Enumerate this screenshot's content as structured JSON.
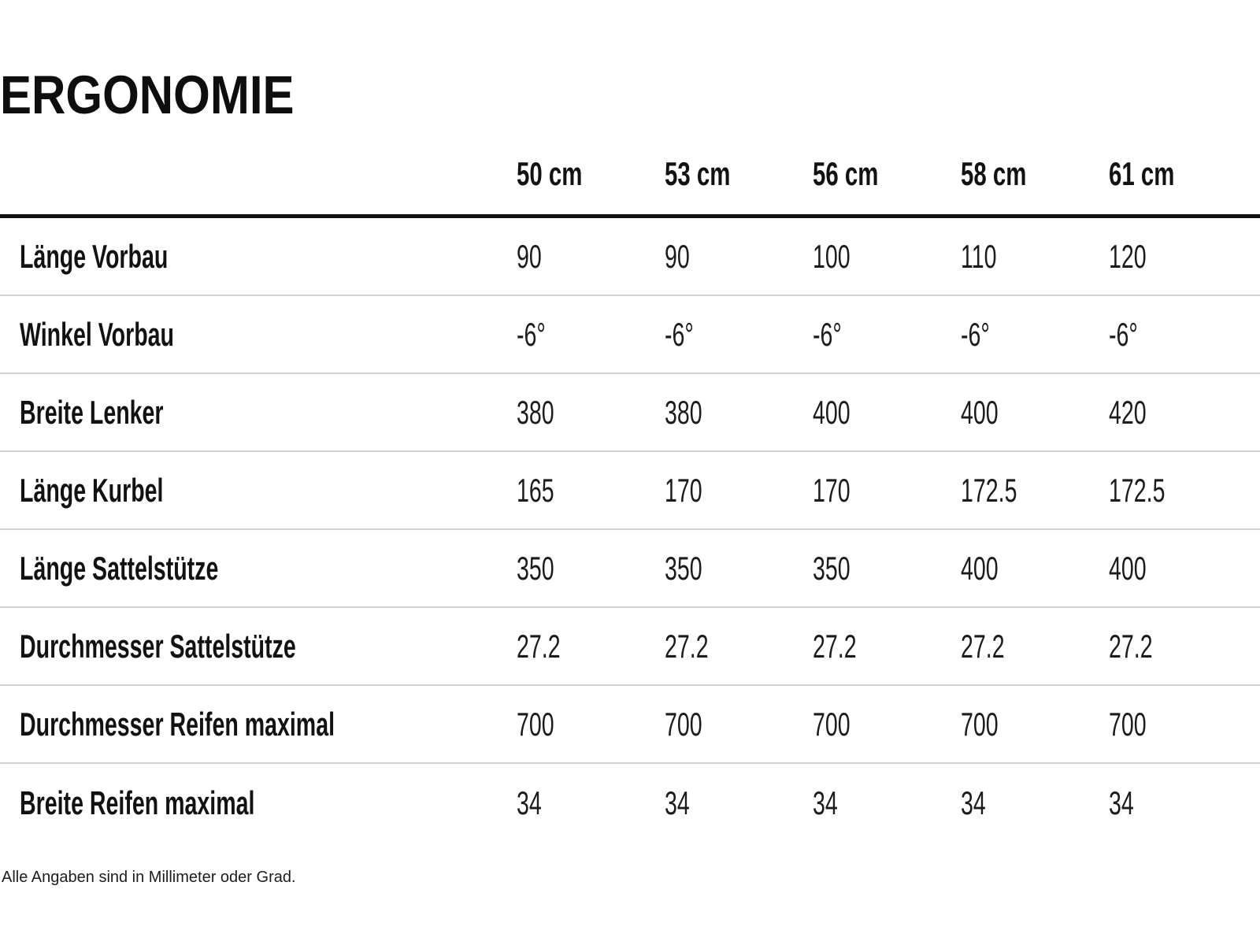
{
  "page": {
    "title": "ERGONOMIE",
    "footnote": "Alle Angaben sind in Millimeter oder Grad."
  },
  "table": {
    "columns": [
      "50 cm",
      "53 cm",
      "56 cm",
      "58 cm",
      "61 cm"
    ],
    "rows": [
      {
        "label": "Länge Vorbau",
        "values": [
          "90",
          "90",
          "100",
          "110",
          "120"
        ]
      },
      {
        "label": "Winkel Vorbau",
        "values": [
          "-6°",
          "-6°",
          "-6°",
          "-6°",
          "-6°"
        ]
      },
      {
        "label": "Breite Lenker",
        "values": [
          "380",
          "380",
          "400",
          "400",
          "420"
        ]
      },
      {
        "label": "Länge Kurbel",
        "values": [
          "165",
          "170",
          "170",
          "172.5",
          "172.5"
        ]
      },
      {
        "label": "Länge Sattelstütze",
        "values": [
          "350",
          "350",
          "350",
          "400",
          "400"
        ]
      },
      {
        "label": "Durchmesser Sattelstütze",
        "values": [
          "27.2",
          "27.2",
          "27.2",
          "27.2",
          "27.2"
        ]
      },
      {
        "label": "Durchmesser Reifen maximal",
        "values": [
          "700",
          "700",
          "700",
          "700",
          "700"
        ]
      },
      {
        "label": "Breite Reifen maximal",
        "values": [
          "34",
          "34",
          "34",
          "34",
          "34"
        ]
      }
    ]
  }
}
